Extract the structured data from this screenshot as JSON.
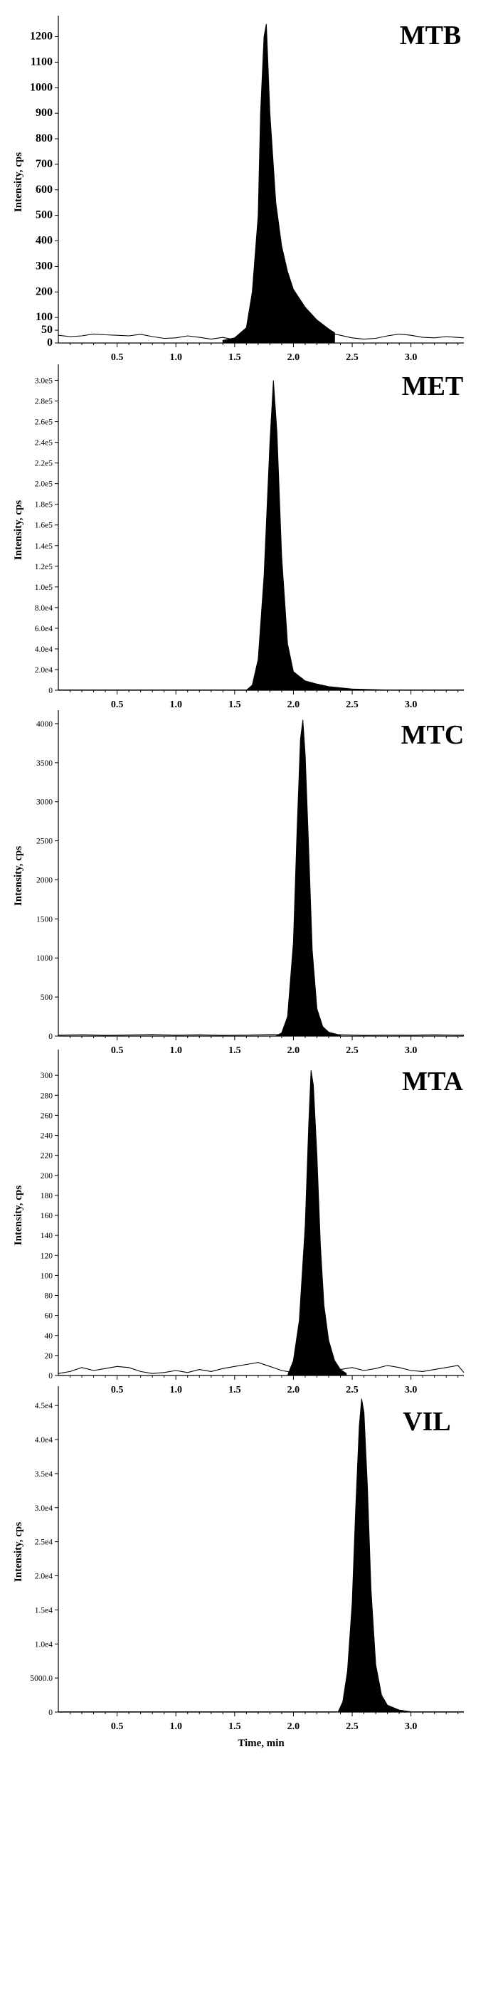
{
  "chart_data": [
    {
      "type": "area",
      "title": "MTB",
      "ylabel": "Intensity, cps",
      "xlabel": "",
      "xlim": [
        0.0,
        3.45
      ],
      "ylim": [
        0,
        1260
      ],
      "x_ticks": [
        "0.5",
        "1.0",
        "1.5",
        "2.0",
        "2.5",
        "3.0"
      ],
      "x_tick_values": [
        0.5,
        1.0,
        1.5,
        2.0,
        2.5,
        3.0
      ],
      "y_ticks": [
        "1200",
        "1100",
        "1000",
        "900",
        "800",
        "700",
        "600",
        "500",
        "400",
        "300",
        "200",
        "100",
        "50",
        "0"
      ],
      "y_tick_values": [
        1200,
        1100,
        1000,
        900,
        800,
        700,
        600,
        500,
        400,
        300,
        200,
        100,
        50,
        0
      ],
      "baseline": {
        "x": [
          0.0,
          0.1,
          0.2,
          0.3,
          0.4,
          0.5,
          0.6,
          0.7,
          0.8,
          0.9,
          1.0,
          1.1,
          1.2,
          1.3,
          1.4,
          1.5,
          1.6,
          1.7,
          1.8,
          1.9,
          2.0,
          2.1,
          2.2,
          2.3,
          2.4,
          2.5,
          2.6,
          2.7,
          2.8,
          2.9,
          3.0,
          3.1,
          3.2,
          3.3,
          3.45
        ],
        "y": [
          30,
          25,
          28,
          35,
          32,
          30,
          28,
          34,
          25,
          18,
          20,
          28,
          22,
          15,
          22,
          12,
          15,
          20,
          22,
          25,
          28,
          35,
          45,
          40,
          30,
          20,
          15,
          18,
          28,
          35,
          30,
          22,
          20,
          25,
          20
        ]
      },
      "peak": {
        "x": [
          1.4,
          1.5,
          1.6,
          1.65,
          1.7,
          1.72,
          1.75,
          1.77,
          1.8,
          1.85,
          1.9,
          1.95,
          2.0,
          2.1,
          2.2,
          2.3,
          2.35
        ],
        "y": [
          10,
          20,
          60,
          200,
          500,
          900,
          1200,
          1250,
          900,
          550,
          380,
          280,
          210,
          140,
          90,
          55,
          40
        ]
      }
    },
    {
      "type": "area",
      "title": "MET",
      "ylabel": "Intensity, cps",
      "xlabel": "",
      "xlim": [
        0.0,
        3.45
      ],
      "ylim": [
        0,
        310000
      ],
      "x_ticks": [
        "0.5",
        "1.0",
        "1.5",
        "2.0",
        "2.5",
        "3.0"
      ],
      "x_tick_values": [
        0.5,
        1.0,
        1.5,
        2.0,
        2.5,
        3.0
      ],
      "y_ticks": [
        "3.0e5",
        "2.8e5",
        "2.6e5",
        "2.4e5",
        "2.2e5",
        "2.0e5",
        "1.8e5",
        "1.6e5",
        "1.4e5",
        "1.2e5",
        "1.0e5",
        "8.0e4",
        "6.0e4",
        "4.0e4",
        "2.0e4",
        "0"
      ],
      "y_tick_values": [
        300000,
        280000,
        260000,
        240000,
        220000,
        200000,
        180000,
        160000,
        140000,
        120000,
        100000,
        80000,
        60000,
        40000,
        20000,
        0
      ],
      "baseline": {
        "x": [
          0.0,
          0.5,
          1.0,
          1.5,
          2.0,
          2.5,
          3.0,
          3.45
        ],
        "y": [
          300,
          300,
          300,
          300,
          300,
          300,
          300,
          300
        ]
      },
      "peak": {
        "x": [
          1.6,
          1.65,
          1.7,
          1.75,
          1.8,
          1.83,
          1.86,
          1.9,
          1.95,
          2.0,
          2.1,
          2.2,
          2.3,
          2.5,
          2.8,
          3.0
        ],
        "y": [
          0,
          5000,
          30000,
          110000,
          240000,
          300000,
          250000,
          130000,
          45000,
          18000,
          9000,
          6000,
          3500,
          1200,
          300,
          100
        ]
      }
    },
    {
      "type": "area",
      "title": "MTC",
      "ylabel": "Intensity, cps",
      "xlabel": "",
      "xlim": [
        0.0,
        3.45
      ],
      "ylim": [
        0,
        4100
      ],
      "x_ticks": [
        "0.5",
        "1.0",
        "1.5",
        "2.0",
        "2.5",
        "3.0"
      ],
      "x_tick_values": [
        0.5,
        1.0,
        1.5,
        2.0,
        2.5,
        3.0
      ],
      "y_ticks": [
        "4000",
        "3500",
        "3000",
        "2500",
        "2000",
        "1500",
        "1000",
        "500",
        "0"
      ],
      "y_tick_values": [
        4000,
        3500,
        3000,
        2500,
        2000,
        1500,
        1000,
        500,
        0
      ],
      "baseline": {
        "x": [
          0.0,
          0.2,
          0.4,
          0.6,
          0.8,
          1.0,
          1.2,
          1.4,
          1.6,
          1.8,
          2.0,
          2.2,
          2.4,
          2.6,
          2.8,
          3.0,
          3.2,
          3.45
        ],
        "y": [
          12,
          18,
          10,
          15,
          20,
          12,
          16,
          10,
          14,
          20,
          15,
          12,
          18,
          10,
          14,
          12,
          16,
          12
        ]
      },
      "peak": {
        "x": [
          1.85,
          1.9,
          1.95,
          2.0,
          2.03,
          2.06,
          2.08,
          2.1,
          2.13,
          2.16,
          2.2,
          2.25,
          2.3,
          2.4
        ],
        "y": [
          0,
          40,
          250,
          1200,
          2600,
          3800,
          4050,
          3600,
          2400,
          1100,
          350,
          120,
          50,
          10
        ]
      }
    },
    {
      "type": "area",
      "title": "MTA",
      "ylabel": "Intensity, cps",
      "xlabel": "",
      "xlim": [
        0.0,
        3.45
      ],
      "ylim": [
        0,
        320
      ],
      "x_ticks": [
        "0.5",
        "1.0",
        "1.5",
        "2.0",
        "2.5",
        "3.0"
      ],
      "x_tick_values": [
        0.5,
        1.0,
        1.5,
        2.0,
        2.5,
        3.0
      ],
      "y_ticks": [
        "300",
        "280",
        "260",
        "240",
        "220",
        "200",
        "180",
        "160",
        "140",
        "120",
        "100",
        "80",
        "60",
        "40",
        "20",
        "0"
      ],
      "y_tick_values": [
        300,
        280,
        260,
        240,
        220,
        200,
        180,
        160,
        140,
        120,
        100,
        80,
        60,
        40,
        20,
        0
      ],
      "baseline": {
        "x": [
          0.0,
          0.1,
          0.2,
          0.3,
          0.4,
          0.5,
          0.6,
          0.7,
          0.8,
          0.9,
          1.0,
          1.1,
          1.2,
          1.3,
          1.4,
          1.5,
          1.6,
          1.7,
          1.8,
          1.9,
          2.0,
          2.1,
          2.2,
          2.3,
          2.4,
          2.5,
          2.6,
          2.7,
          2.8,
          2.9,
          3.0,
          3.1,
          3.2,
          3.3,
          3.4,
          3.45
        ],
        "y": [
          2,
          4,
          8,
          5,
          7,
          9,
          8,
          4,
          2,
          3,
          5,
          3,
          6,
          4,
          7,
          9,
          11,
          13,
          9,
          5,
          3,
          4,
          3,
          4,
          6,
          8,
          5,
          7,
          10,
          8,
          5,
          4,
          6,
          8,
          10,
          3
        ]
      },
      "peak": {
        "x": [
          1.95,
          2.0,
          2.05,
          2.1,
          2.13,
          2.15,
          2.17,
          2.2,
          2.23,
          2.26,
          2.3,
          2.35,
          2.4,
          2.45
        ],
        "y": [
          0,
          15,
          55,
          150,
          250,
          305,
          290,
          220,
          130,
          70,
          35,
          15,
          6,
          2
        ]
      }
    },
    {
      "type": "area",
      "title": "VIL",
      "ylabel": "Intensity, cps",
      "xlabel": "Time, min",
      "xlim": [
        0.0,
        3.45
      ],
      "ylim": [
        0,
        47000
      ],
      "x_ticks": [
        "0.5",
        "1.0",
        "1.5",
        "2.0",
        "2.5",
        "3.0"
      ],
      "x_tick_values": [
        0.5,
        1.0,
        1.5,
        2.0,
        2.5,
        3.0
      ],
      "y_ticks": [
        "4.5e4",
        "4.0e4",
        "3.5e4",
        "3.0e4",
        "2.5e4",
        "2.0e4",
        "1.5e4",
        "1.0e4",
        "5000.0",
        "0"
      ],
      "y_tick_values": [
        45000,
        40000,
        35000,
        30000,
        25000,
        20000,
        15000,
        10000,
        5000,
        0
      ],
      "baseline": {
        "x": [
          0.0,
          0.5,
          1.0,
          1.5,
          2.0,
          2.5,
          3.0,
          3.45
        ],
        "y": [
          30,
          30,
          30,
          30,
          30,
          30,
          30,
          30
        ]
      },
      "peak": {
        "x": [
          2.38,
          2.42,
          2.46,
          2.5,
          2.53,
          2.56,
          2.58,
          2.6,
          2.63,
          2.66,
          2.7,
          2.75,
          2.8,
          2.9,
          3.0
        ],
        "y": [
          0,
          1500,
          6000,
          16000,
          30000,
          42000,
          46000,
          44000,
          33000,
          18000,
          7000,
          2500,
          1000,
          300,
          50
        ]
      }
    }
  ]
}
